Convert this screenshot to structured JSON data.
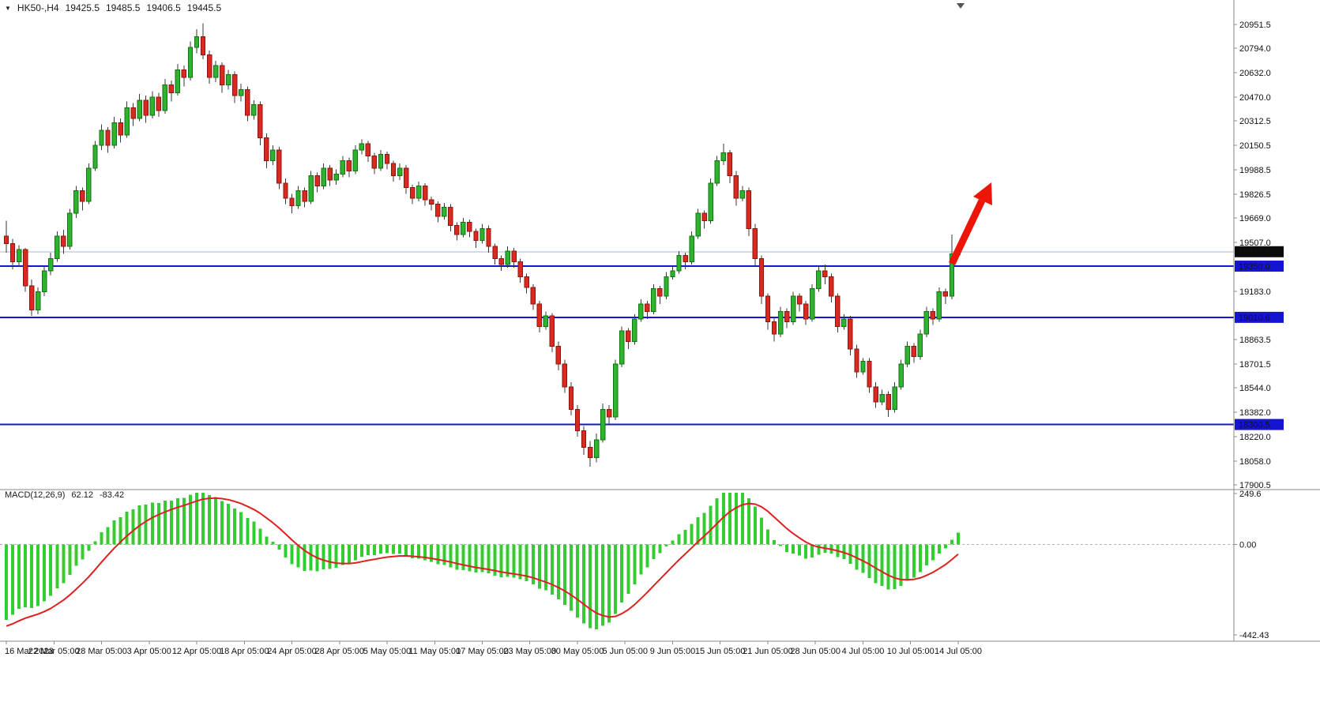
{
  "window": {
    "caption_symbol": "HK50-,H4",
    "ohlc": {
      "open": "19425.5",
      "high": "19485.5",
      "low": "19406.5",
      "close": "19445.5"
    }
  },
  "chart_data": {
    "type": "candlestick",
    "symbol": "HK50",
    "timeframe": "H4",
    "legend_position": "none",
    "grid": "off",
    "price_axis": {
      "max": 20951.5,
      "min": 17900.5,
      "labels": [
        "20951.5",
        "20794.0",
        "20632.0",
        "20470.0",
        "20312.5",
        "20150.5",
        "19988.5",
        "19826.5",
        "19669.0",
        "19507.0",
        "19345.5",
        "19183.0",
        "19021.5",
        "18863.5",
        "18701.5",
        "18544.0",
        "18382.0",
        "18220.0",
        "18058.0",
        "17900.5"
      ]
    },
    "current_price": {
      "value": 19445.5,
      "label": "19445.5"
    },
    "hlines": [
      {
        "value": 19350.0,
        "label": "19350.0"
      },
      {
        "value": 19010.6,
        "label": "19010.6"
      },
      {
        "value": 18300.5,
        "label": "18300.5"
      }
    ],
    "x_labels": [
      "16 Mar 2023",
      "22 Mar 05:00",
      "28 Mar 05:00",
      "3 Apr 05:00",
      "12 Apr 05:00",
      "18 Apr 05:00",
      "24 Apr 05:00",
      "28 Apr 05:00",
      "5 May 05:00",
      "11 May 05:00",
      "17 May 05:00",
      "23 May 05:00",
      "30 May 05:00",
      "5 Jun 05:00",
      "9 Jun 05:00",
      "15 Jun 05:00",
      "21 Jun 05:00",
      "28 Jun 05:00",
      "4 Jul 05:00",
      "10 Jul 05:00",
      "14 Jul 05:00"
    ],
    "candles": [
      [
        19550,
        19650,
        19440,
        19500
      ],
      [
        19500,
        19530,
        19330,
        19380
      ],
      [
        19380,
        19490,
        19350,
        19460
      ],
      [
        19460,
        19470,
        19180,
        19220
      ],
      [
        19220,
        19260,
        19020,
        19060
      ],
      [
        19060,
        19210,
        19030,
        19180
      ],
      [
        19180,
        19350,
        19150,
        19320
      ],
      [
        19320,
        19440,
        19290,
        19400
      ],
      [
        19400,
        19580,
        19380,
        19550
      ],
      [
        19550,
        19590,
        19430,
        19480
      ],
      [
        19480,
        19730,
        19460,
        19700
      ],
      [
        19700,
        19880,
        19670,
        19850
      ],
      [
        19850,
        19870,
        19720,
        19780
      ],
      [
        19780,
        20030,
        19760,
        20000
      ],
      [
        20000,
        20180,
        19980,
        20150
      ],
      [
        20150,
        20290,
        20120,
        20250
      ],
      [
        20250,
        20270,
        20100,
        20150
      ],
      [
        20150,
        20340,
        20130,
        20300
      ],
      [
        20300,
        20330,
        20170,
        20220
      ],
      [
        20220,
        20440,
        20200,
        20400
      ],
      [
        20400,
        20430,
        20280,
        20330
      ],
      [
        20330,
        20490,
        20310,
        20450
      ],
      [
        20450,
        20480,
        20300,
        20350
      ],
      [
        20350,
        20510,
        20330,
        20470
      ],
      [
        20470,
        20500,
        20340,
        20380
      ],
      [
        20380,
        20590,
        20360,
        20550
      ],
      [
        20550,
        20580,
        20440,
        20500
      ],
      [
        20500,
        20690,
        20480,
        20650
      ],
      [
        20650,
        20680,
        20540,
        20600
      ],
      [
        20600,
        20840,
        20580,
        20800
      ],
      [
        20800,
        20920,
        20760,
        20870
      ],
      [
        20870,
        20960,
        20720,
        20750
      ],
      [
        20750,
        20780,
        20560,
        20600
      ],
      [
        20600,
        20710,
        20570,
        20680
      ],
      [
        20680,
        20700,
        20500,
        20550
      ],
      [
        20550,
        20650,
        20520,
        20620
      ],
      [
        20620,
        20640,
        20430,
        20480
      ],
      [
        20480,
        20560,
        20440,
        20520
      ],
      [
        20520,
        20540,
        20310,
        20350
      ],
      [
        20350,
        20450,
        20320,
        20420
      ],
      [
        20420,
        20440,
        20150,
        20200
      ],
      [
        20200,
        20230,
        20000,
        20050
      ],
      [
        20050,
        20150,
        20020,
        20120
      ],
      [
        20120,
        20140,
        19860,
        19900
      ],
      [
        19900,
        19930,
        19760,
        19800
      ],
      [
        19800,
        19830,
        19700,
        19750
      ],
      [
        19750,
        19880,
        19730,
        19850
      ],
      [
        19850,
        19870,
        19740,
        19780
      ],
      [
        19780,
        19980,
        19760,
        19950
      ],
      [
        19950,
        19970,
        19840,
        19880
      ],
      [
        19880,
        20030,
        19860,
        20000
      ],
      [
        20000,
        20020,
        19880,
        19920
      ],
      [
        19920,
        19990,
        19890,
        19960
      ],
      [
        19960,
        20080,
        19940,
        20050
      ],
      [
        20050,
        20070,
        19940,
        19980
      ],
      [
        19980,
        20150,
        19960,
        20120
      ],
      [
        20120,
        20190,
        20090,
        20160
      ],
      [
        20160,
        20180,
        20040,
        20080
      ],
      [
        20080,
        20100,
        19960,
        20000
      ],
      [
        20000,
        20120,
        19980,
        20090
      ],
      [
        20090,
        20110,
        19990,
        20030
      ],
      [
        20030,
        20050,
        19910,
        19950
      ],
      [
        19950,
        20030,
        19920,
        20000
      ],
      [
        20000,
        20020,
        19830,
        19870
      ],
      [
        19870,
        19890,
        19760,
        19800
      ],
      [
        19800,
        19910,
        19780,
        19880
      ],
      [
        19880,
        19900,
        19750,
        19790
      ],
      [
        19790,
        19810,
        19720,
        19760
      ],
      [
        19760,
        19780,
        19640,
        19680
      ],
      [
        19680,
        19770,
        19660,
        19740
      ],
      [
        19740,
        19760,
        19580,
        19620
      ],
      [
        19620,
        19640,
        19520,
        19560
      ],
      [
        19560,
        19670,
        19540,
        19640
      ],
      [
        19640,
        19660,
        19540,
        19580
      ],
      [
        19580,
        19600,
        19470,
        19520
      ],
      [
        19520,
        19630,
        19500,
        19600
      ],
      [
        19600,
        19620,
        19440,
        19480
      ],
      [
        19480,
        19500,
        19360,
        19400
      ],
      [
        19400,
        19420,
        19320,
        19360
      ],
      [
        19360,
        19480,
        19340,
        19450
      ],
      [
        19450,
        19470,
        19340,
        19380
      ],
      [
        19380,
        19400,
        19240,
        19280
      ],
      [
        19280,
        19300,
        19170,
        19210
      ],
      [
        19210,
        19230,
        19060,
        19100
      ],
      [
        19100,
        19120,
        18910,
        18950
      ],
      [
        18950,
        19050,
        18930,
        19020
      ],
      [
        19020,
        19040,
        18780,
        18820
      ],
      [
        18820,
        18850,
        18660,
        18700
      ],
      [
        18700,
        18730,
        18510,
        18550
      ],
      [
        18550,
        18580,
        18360,
        18400
      ],
      [
        18400,
        18430,
        18220,
        18260
      ],
      [
        18260,
        18290,
        18100,
        18150
      ],
      [
        18150,
        18190,
        18020,
        18080
      ],
      [
        18080,
        18240,
        18050,
        18200
      ],
      [
        18200,
        18440,
        18180,
        18400
      ],
      [
        18400,
        18430,
        18300,
        18350
      ],
      [
        18350,
        18730,
        18330,
        18700
      ],
      [
        18700,
        18950,
        18680,
        18920
      ],
      [
        18920,
        18940,
        18800,
        18850
      ],
      [
        18850,
        19030,
        18830,
        19000
      ],
      [
        19000,
        19130,
        18980,
        19100
      ],
      [
        19100,
        19120,
        19000,
        19050
      ],
      [
        19050,
        19230,
        19030,
        19200
      ],
      [
        19200,
        19220,
        19100,
        19150
      ],
      [
        19150,
        19310,
        19130,
        19280
      ],
      [
        19280,
        19350,
        19260,
        19320
      ],
      [
        19320,
        19450,
        19300,
        19420
      ],
      [
        19420,
        19440,
        19330,
        19380
      ],
      [
        19380,
        19580,
        19360,
        19550
      ],
      [
        19550,
        19730,
        19530,
        19700
      ],
      [
        19700,
        19720,
        19600,
        19650
      ],
      [
        19650,
        19930,
        19630,
        19900
      ],
      [
        19900,
        20080,
        19880,
        20050
      ],
      [
        20050,
        20160,
        20020,
        20100
      ],
      [
        20100,
        20120,
        19900,
        19950
      ],
      [
        19950,
        19980,
        19750,
        19800
      ],
      [
        19800,
        19880,
        19780,
        19850
      ],
      [
        19850,
        19870,
        19550,
        19600
      ],
      [
        19600,
        19630,
        19350,
        19400
      ],
      [
        19400,
        19420,
        19100,
        19150
      ],
      [
        19150,
        19170,
        18930,
        18980
      ],
      [
        18980,
        19010,
        18850,
        18900
      ],
      [
        18900,
        19080,
        18880,
        19050
      ],
      [
        19050,
        19070,
        18940,
        18980
      ],
      [
        18980,
        19180,
        18960,
        19150
      ],
      [
        19150,
        19170,
        19050,
        19100
      ],
      [
        19100,
        19120,
        18960,
        19000
      ],
      [
        19000,
        19230,
        18980,
        19200
      ],
      [
        19200,
        19350,
        19180,
        19320
      ],
      [
        19320,
        19360,
        19230,
        19280
      ],
      [
        19280,
        19300,
        19110,
        19150
      ],
      [
        19150,
        19170,
        18910,
        18950
      ],
      [
        18950,
        19030,
        18930,
        19000
      ],
      [
        19000,
        19020,
        18760,
        18800
      ],
      [
        18800,
        18830,
        18610,
        18650
      ],
      [
        18650,
        18740,
        18630,
        18720
      ],
      [
        18720,
        18740,
        18510,
        18550
      ],
      [
        18550,
        18580,
        18410,
        18450
      ],
      [
        18450,
        18530,
        18430,
        18500
      ],
      [
        18500,
        18520,
        18350,
        18400
      ],
      [
        18400,
        18580,
        18380,
        18550
      ],
      [
        18550,
        18730,
        18530,
        18700
      ],
      [
        18700,
        18850,
        18680,
        18820
      ],
      [
        18820,
        18840,
        18710,
        18750
      ],
      [
        18750,
        18930,
        18730,
        18900
      ],
      [
        18900,
        19080,
        18880,
        19050
      ],
      [
        19050,
        19070,
        18960,
        19000
      ],
      [
        19000,
        19210,
        18980,
        19180
      ],
      [
        19180,
        19200,
        19100,
        19150
      ],
      [
        19150,
        19560,
        19130,
        19430
      ],
      [
        19425.5,
        19485.5,
        19406.5,
        19445.5
      ]
    ],
    "macd": {
      "label": "MACD(12,26,9)",
      "value": "62.12",
      "signal_value": "-83.42",
      "params": {
        "fast": 12,
        "slow": 26,
        "signal": 9
      },
      "seed_offset_fast": -100,
      "seed_offset_slow": 300,
      "range": [
        -442.43,
        249.6
      ],
      "axis": {
        "top": "249.6",
        "zero": "0.00",
        "bottom": "-442.43"
      }
    }
  },
  "colors": {
    "background": "#ffffff",
    "bull_fill": "#2fb22f",
    "bull_stroke": "#0d770d",
    "bear_fill": "#da2a20",
    "bear_stroke": "#8e1410",
    "wick": "#3a3a3a",
    "hline": "#1515cf",
    "current_badge_bg": "#0b0b0b",
    "badge_text": "#ffffff",
    "macd_histogram": "#33cc33",
    "macd_signal": "#e02020",
    "axis_text": "#111111",
    "frame": "#8a8a8a",
    "bid_line": "#a9b7cf",
    "arrow": "#ee1408"
  }
}
